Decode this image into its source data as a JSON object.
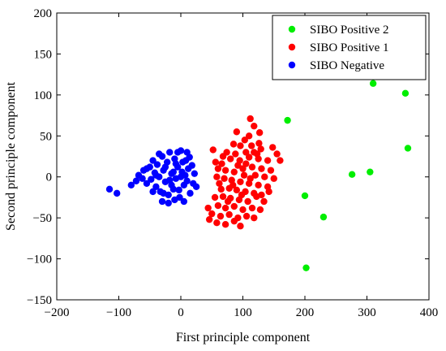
{
  "chart_data": {
    "type": "scatter",
    "title": "",
    "xlabel": "First principle component",
    "ylabel": "Second principle component",
    "xlim": [
      -200,
      400
    ],
    "ylim": [
      -150,
      200
    ],
    "x_ticks": [
      -200,
      -100,
      0,
      100,
      200,
      300,
      400
    ],
    "y_ticks": [
      -150,
      -100,
      -50,
      0,
      50,
      100,
      150,
      200
    ],
    "grid": false,
    "legend_position": "top-right",
    "series": [
      {
        "name": "SIBO Positive 2",
        "color": "#00ee00",
        "points": [
          [
            310,
            114
          ],
          [
            362,
            102
          ],
          [
            366,
            35
          ],
          [
            172,
            69
          ],
          [
            276,
            3
          ],
          [
            305,
            6
          ],
          [
            200,
            -23
          ],
          [
            230,
            -49
          ],
          [
            202,
            -111
          ]
        ]
      },
      {
        "name": "SIBO Positive 1",
        "color": "#ff0000",
        "points": [
          [
            112,
            71
          ],
          [
            90,
            55
          ],
          [
            127,
            54
          ],
          [
            118,
            62
          ],
          [
            110,
            50
          ],
          [
            103,
            45
          ],
          [
            126,
            41
          ],
          [
            85,
            40
          ],
          [
            96,
            38
          ],
          [
            114,
            38
          ],
          [
            129,
            34
          ],
          [
            148,
            36
          ],
          [
            52,
            33
          ],
          [
            105,
            30
          ],
          [
            123,
            28
          ],
          [
            155,
            28
          ],
          [
            68,
            25
          ],
          [
            80,
            22
          ],
          [
            95,
            20
          ],
          [
            110,
            24
          ],
          [
            125,
            22
          ],
          [
            140,
            20
          ],
          [
            160,
            20
          ],
          [
            118,
            30
          ],
          [
            100,
            10
          ],
          [
            115,
            12
          ],
          [
            130,
            10
          ],
          [
            145,
            8
          ],
          [
            60,
            10
          ],
          [
            72,
            8
          ],
          [
            86,
            6
          ],
          [
            92,
            14
          ],
          [
            105,
            16
          ],
          [
            120,
            2
          ],
          [
            135,
            0
          ],
          [
            150,
            -2
          ],
          [
            58,
            0
          ],
          [
            70,
            -2
          ],
          [
            82,
            -4
          ],
          [
            96,
            -6
          ],
          [
            110,
            -8
          ],
          [
            125,
            -10
          ],
          [
            140,
            -12
          ],
          [
            65,
            -15
          ],
          [
            78,
            -14
          ],
          [
            90,
            -16
          ],
          [
            104,
            -18
          ],
          [
            118,
            -20
          ],
          [
            130,
            -22
          ],
          [
            55,
            -25
          ],
          [
            68,
            -24
          ],
          [
            80,
            -26
          ],
          [
            94,
            -28
          ],
          [
            108,
            -30
          ],
          [
            122,
            -24
          ],
          [
            60,
            -35
          ],
          [
            72,
            -38
          ],
          [
            86,
            -36
          ],
          [
            100,
            -40
          ],
          [
            115,
            -38
          ],
          [
            50,
            -45
          ],
          [
            64,
            -48
          ],
          [
            78,
            -46
          ],
          [
            92,
            -50
          ],
          [
            106,
            -48
          ],
          [
            58,
            -56
          ],
          [
            72,
            -58
          ],
          [
            86,
            -54
          ],
          [
            96,
            -60
          ],
          [
            44,
            -38
          ],
          [
            46,
            -52
          ],
          [
            74,
            30
          ],
          [
            88,
            28
          ],
          [
            66,
            16
          ],
          [
            102,
            2
          ],
          [
            112,
            -2
          ],
          [
            84,
            -10
          ],
          [
            76,
            -30
          ],
          [
            98,
            -22
          ],
          [
            62,
            -8
          ],
          [
            134,
            -30
          ],
          [
            128,
            -40
          ],
          [
            142,
            -18
          ],
          [
            118,
            -50
          ],
          [
            56,
            18
          ]
        ]
      },
      {
        "name": "SIBO Negative",
        "color": "#0000ff",
        "points": [
          [
            -115,
            -15
          ],
          [
            -103,
            -20
          ],
          [
            -80,
            -10
          ],
          [
            -72,
            -5
          ],
          [
            -68,
            2
          ],
          [
            -60,
            8
          ],
          [
            -55,
            -8
          ],
          [
            -50,
            12
          ],
          [
            -48,
            -3
          ],
          [
            -45,
            20
          ],
          [
            -42,
            5
          ],
          [
            -40,
            -12
          ],
          [
            -38,
            15
          ],
          [
            -35,
            0
          ],
          [
            -33,
            -18
          ],
          [
            -30,
            25
          ],
          [
            -28,
            8
          ],
          [
            -25,
            -6
          ],
          [
            -22,
            18
          ],
          [
            -20,
            -22
          ],
          [
            -18,
            30
          ],
          [
            -15,
            4
          ],
          [
            -12,
            -15
          ],
          [
            -10,
            22
          ],
          [
            -8,
            -2
          ],
          [
            -5,
            12
          ],
          [
            -2,
            -25
          ],
          [
            0,
            32
          ],
          [
            2,
            6
          ],
          [
            5,
            -10
          ],
          [
            8,
            20
          ],
          [
            10,
            -5
          ],
          [
            12,
            10
          ],
          [
            15,
            -20
          ],
          [
            18,
            14
          ],
          [
            20,
            -8
          ],
          [
            22,
            4
          ],
          [
            25,
            -12
          ],
          [
            -30,
            -30
          ],
          [
            -20,
            -32
          ],
          [
            -10,
            -28
          ],
          [
            5,
            -30
          ],
          [
            -35,
            28
          ],
          [
            -5,
            30
          ],
          [
            10,
            30
          ],
          [
            -45,
            -18
          ],
          [
            -55,
            10
          ],
          [
            -62,
            -2
          ],
          [
            -25,
            12
          ],
          [
            -15,
            -10
          ],
          [
            0,
            0
          ],
          [
            -8,
            16
          ],
          [
            14,
            24
          ],
          [
            -28,
            -20
          ],
          [
            -40,
            2
          ],
          [
            3,
            18
          ],
          [
            -12,
            6
          ],
          [
            -18,
            -4
          ],
          [
            7,
            2
          ],
          [
            -3,
            -16
          ]
        ]
      }
    ]
  }
}
